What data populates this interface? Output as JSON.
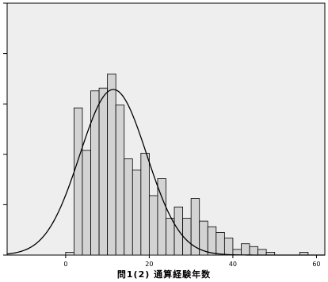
{
  "chart_data": {
    "type": "bar",
    "subtype": "histogram-with-normal-curve",
    "xlabel": "問1(2)  通算経験年数",
    "ylabel": "",
    "title": "",
    "xlim": [
      -14,
      62
    ],
    "ylim": [
      0,
      89
    ],
    "x_ticks": [
      0,
      20,
      40,
      60
    ],
    "bin_width": 2,
    "bins": [
      {
        "x0": 0,
        "x1": 2,
        "value": 1
      },
      {
        "x0": 2,
        "x1": 4,
        "value": 52
      },
      {
        "x0": 4,
        "x1": 6,
        "value": 37
      },
      {
        "x0": 6,
        "x1": 8,
        "value": 58
      },
      {
        "x0": 8,
        "x1": 10,
        "value": 59
      },
      {
        "x0": 10,
        "x1": 12,
        "value": 64
      },
      {
        "x0": 12,
        "x1": 14,
        "value": 53
      },
      {
        "x0": 14,
        "x1": 16,
        "value": 34
      },
      {
        "x0": 16,
        "x1": 18,
        "value": 30
      },
      {
        "x0": 18,
        "x1": 20,
        "value": 36
      },
      {
        "x0": 20,
        "x1": 22,
        "value": 21
      },
      {
        "x0": 22,
        "x1": 24,
        "value": 27
      },
      {
        "x0": 24,
        "x1": 26,
        "value": 13
      },
      {
        "x0": 26,
        "x1": 28,
        "value": 17
      },
      {
        "x0": 28,
        "x1": 30,
        "value": 13
      },
      {
        "x0": 30,
        "x1": 32,
        "value": 20
      },
      {
        "x0": 32,
        "x1": 34,
        "value": 12
      },
      {
        "x0": 34,
        "x1": 36,
        "value": 10
      },
      {
        "x0": 36,
        "x1": 38,
        "value": 8
      },
      {
        "x0": 38,
        "x1": 40,
        "value": 6
      },
      {
        "x0": 40,
        "x1": 42,
        "value": 2
      },
      {
        "x0": 42,
        "x1": 44,
        "value": 4
      },
      {
        "x0": 44,
        "x1": 46,
        "value": 3
      },
      {
        "x0": 46,
        "x1": 48,
        "value": 2
      },
      {
        "x0": 48,
        "x1": 50,
        "value": 1
      },
      {
        "x0": 56,
        "x1": 58,
        "value": 1
      }
    ],
    "normal_curve": {
      "mean": 11.4,
      "sd": 8.0,
      "peak": 58.5
    },
    "grid": false,
    "colors": {
      "plot_background": "#eeeeee",
      "bar_fill": "#d3d3d3",
      "bar_stroke": "#000000",
      "curve": "#000000",
      "axis": "#000000"
    }
  }
}
